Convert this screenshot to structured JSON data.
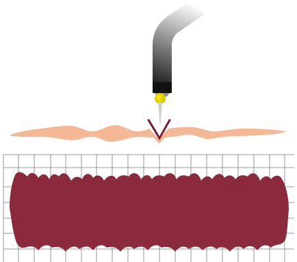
{
  "colors": {
    "background": "#ffffff",
    "tissue_strip": "#f5b896",
    "tissue_block": "#8a2a3c",
    "grid_line": "#7a7a7a",
    "needle_bright": "#ffee00",
    "needle_dark": "#c8b400",
    "tube_dark": "#111111",
    "tube_light": "#ffffff"
  },
  "icons": {
    "instrument": "probe-needle-icon",
    "incision": "v-notch-icon"
  }
}
